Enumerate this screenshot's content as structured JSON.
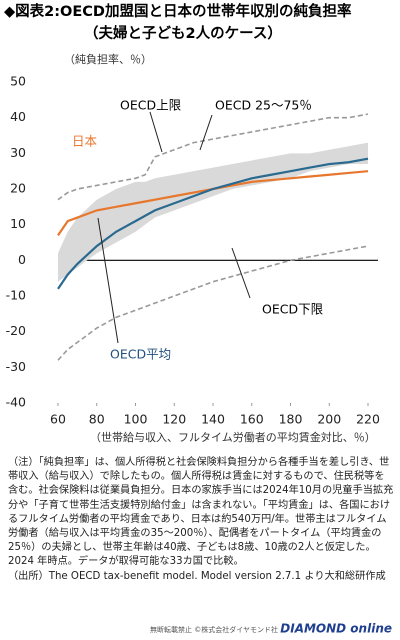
{
  "chart_data": {
    "type": "line",
    "title": "◆図表2:OECD加盟国と日本の世帯年収別の純負担率",
    "subtitle": "（夫婦と子ども2人のケース）",
    "y_label": "（純負担率、％）",
    "x_label": "（世帯給与収入、フルタイム労働者の平均賃金対比、％）",
    "x": [
      60,
      65,
      70,
      80,
      90,
      100,
      105,
      110,
      120,
      130,
      140,
      150,
      160,
      170,
      180,
      190,
      200,
      210,
      220
    ],
    "series": [
      {
        "name": "OECD 25～75％",
        "color": "#d9d9d9",
        "low": [
          -6,
          -4,
          -2,
          2,
          5,
          8,
          10,
          12,
          14,
          16,
          18,
          20,
          21,
          22,
          23,
          25,
          26,
          27,
          27
        ],
        "high": [
          2,
          8,
          12,
          17,
          20,
          22,
          22,
          23,
          24,
          25,
          26,
          27,
          28,
          29,
          30,
          30,
          31,
          32,
          33
        ]
      },
      {
        "name": "OECD上限",
        "color": "#999999",
        "values": [
          17,
          19,
          20,
          21,
          22,
          23,
          24,
          29,
          31,
          33,
          34,
          35,
          36,
          37,
          38,
          39,
          40,
          40,
          41
        ]
      },
      {
        "name": "日本",
        "color": "#e8772e",
        "values": [
          7,
          11,
          12,
          14,
          15,
          16,
          16.5,
          17,
          18,
          19,
          20,
          21,
          22,
          22.5,
          23,
          23.5,
          24,
          24.5,
          25
        ]
      },
      {
        "name": "OECD下限",
        "color": "#999999",
        "values": [
          -28,
          -25,
          -23,
          -19,
          -16,
          -14,
          -13,
          -12,
          -10,
          -8,
          -6,
          -4.5,
          -3,
          -1.5,
          0,
          1,
          2,
          3,
          4
        ]
      },
      {
        "name": "OECD平均",
        "color": "#2a6a8f",
        "values": [
          -8,
          -4,
          -1,
          4,
          8,
          11,
          12.5,
          14,
          16,
          18,
          20,
          21.5,
          23,
          24,
          25,
          26,
          27,
          27.5,
          28.5
        ]
      }
    ],
    "xlim": [
      60,
      220
    ],
    "ylim": [
      -40,
      50
    ],
    "xticks": [
      60,
      80,
      100,
      120,
      140,
      160,
      180,
      200,
      220
    ],
    "yticks": [
      -40,
      -30,
      -20,
      -10,
      0,
      10,
      20,
      30,
      40,
      50
    ],
    "notes": [
      "（注）「純負担率」は、個人所得税と社会保険料負担分から各種手当を差し引き、世帯収入（給与収入）で除したもの。個人所得税は賃金に対するもので、住民税等を含む。社会保険料は従業員負担分。日本の家族手当には2024年10月の児童手当拡充分や「子育て世帯生活支援特別給付金」は含まれない。「平均賃金」は、各国におけるフルタイム労働者の平均賃金であり、日本は約540万円/年。世帯主はフルタイム労働者（給与収入は平均賃金の35～200％）、配偶者をパートタイム（平均賃金の25％）の夫婦とし、世帯主年齢は40歳、子どもは8歳、10歳の2人と仮定した。2024 年時点。データが取得可能な33カ国で比較。",
      "（出所）The OECD tax-benefit model. Model version 2.7.1 より大和総研作成"
    ],
    "footer": "無断転載禁止 ©株式会社ダイヤモンド社",
    "brand": "DIAMOND online"
  }
}
